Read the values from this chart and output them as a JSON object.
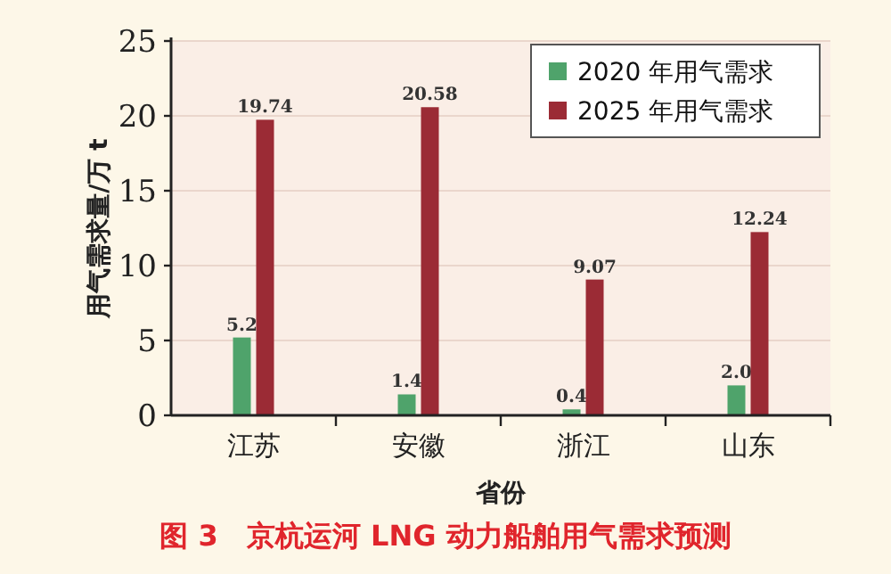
{
  "chart_data": {
    "type": "bar",
    "title": "图 3　京杭运河 LNG 动力船舶用气需求预测",
    "xlabel": "省份",
    "ylabel": "用气需求量/万 t",
    "categories": [
      "江苏",
      "安徽",
      "浙江",
      "山东"
    ],
    "series": [
      {
        "name": "2020 年用气需求",
        "color": "#4fa36b",
        "values": [
          5.2,
          1.4,
          0.4,
          2.0
        ],
        "value_labels": [
          "5.2",
          "1.4",
          "0.4",
          "2.0"
        ]
      },
      {
        "name": "2025 年用气需求",
        "color": "#9b2b35",
        "values": [
          19.74,
          20.58,
          9.07,
          12.24
        ],
        "value_labels": [
          "19.74",
          "20.58",
          "9.07",
          "12.24"
        ]
      }
    ],
    "ylim": [
      0,
      25
    ],
    "yticks": [
      0,
      5,
      10,
      15,
      20,
      25
    ],
    "grid": "y",
    "legend": "top right"
  }
}
